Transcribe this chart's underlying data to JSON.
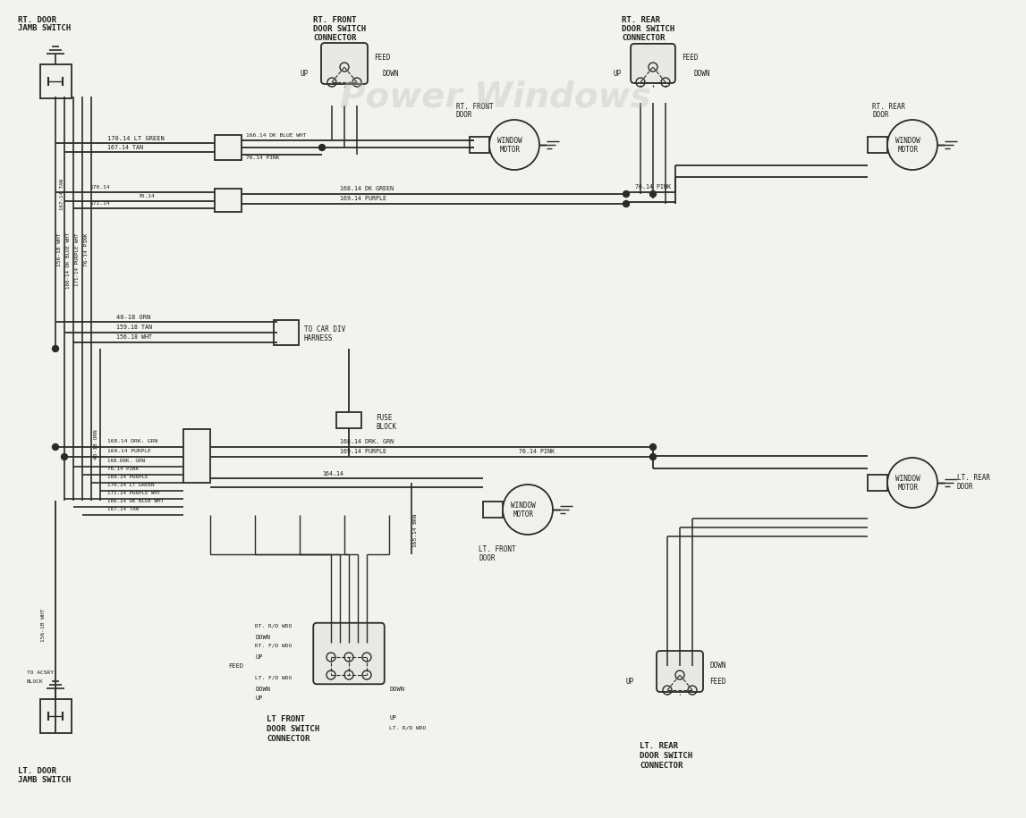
{
  "bg_color": "#f2f2ee",
  "line_color": "#2a2a2a",
  "text_color": "#1a1a1a",
  "figsize": [
    11.47,
    9.15
  ],
  "dpi": 100,
  "watermark": "Power Windows",
  "xlim": [
    0,
    1147
  ],
  "ylim": [
    0,
    915
  ]
}
